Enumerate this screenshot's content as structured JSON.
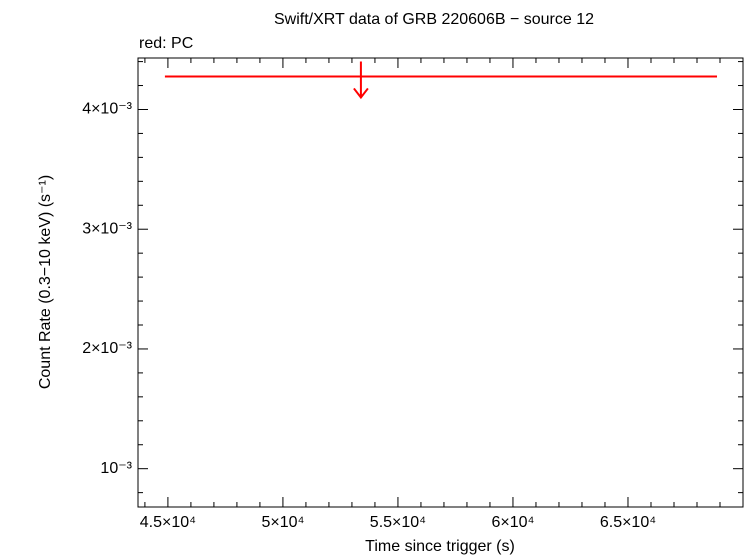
{
  "chart_data": {
    "type": "upper_limit",
    "title": "Swift/XRT data of GRB 220606B − source 12",
    "annotation": "red: PC",
    "x_label": "Time since trigger (s)",
    "y_label": "Count Rate (0.3−10 keV) (s⁻¹)",
    "series": [
      {
        "color": "#ff0000",
        "x": [
          53390
        ],
        "xlow": [
          44870
        ],
        "xhigh": [
          68870
        ],
        "values": [
          0.004276
        ],
        "upper_limit": true
      }
    ],
    "xlim": [
      43700,
      70000
    ],
    "ylim": [
      0.00068,
      0.00443
    ],
    "xticks": [
      {
        "value": 45000,
        "label": "4.5×10⁴"
      },
      {
        "value": 50000,
        "label": "5×10⁴"
      },
      {
        "value": 55000,
        "label": "5.5×10⁴"
      },
      {
        "value": 60000,
        "label": "6×10⁴"
      },
      {
        "value": 65000,
        "label": "6.5×10⁴"
      }
    ],
    "yticks": [
      {
        "value": 0.001,
        "label": "10⁻³"
      },
      {
        "value": 0.002,
        "label": "2×10⁻³"
      },
      {
        "value": 0.003,
        "label": "3×10⁻³"
      },
      {
        "value": 0.004,
        "label": "4×10⁻³"
      }
    ],
    "xminorticks": [
      44000,
      46000,
      47000,
      48000,
      49000,
      51000,
      52000,
      53000,
      54000,
      56000,
      57000,
      58000,
      59000,
      61000,
      62000,
      63000,
      64000,
      66000,
      67000,
      68000,
      69000
    ],
    "yminorticks": [
      0.0008,
      0.0012,
      0.0014,
      0.0016,
      0.0018,
      0.0022,
      0.0024,
      0.0026,
      0.0028,
      0.0032,
      0.0034,
      0.0036,
      0.0038,
      0.0042,
      0.0044
    ]
  }
}
